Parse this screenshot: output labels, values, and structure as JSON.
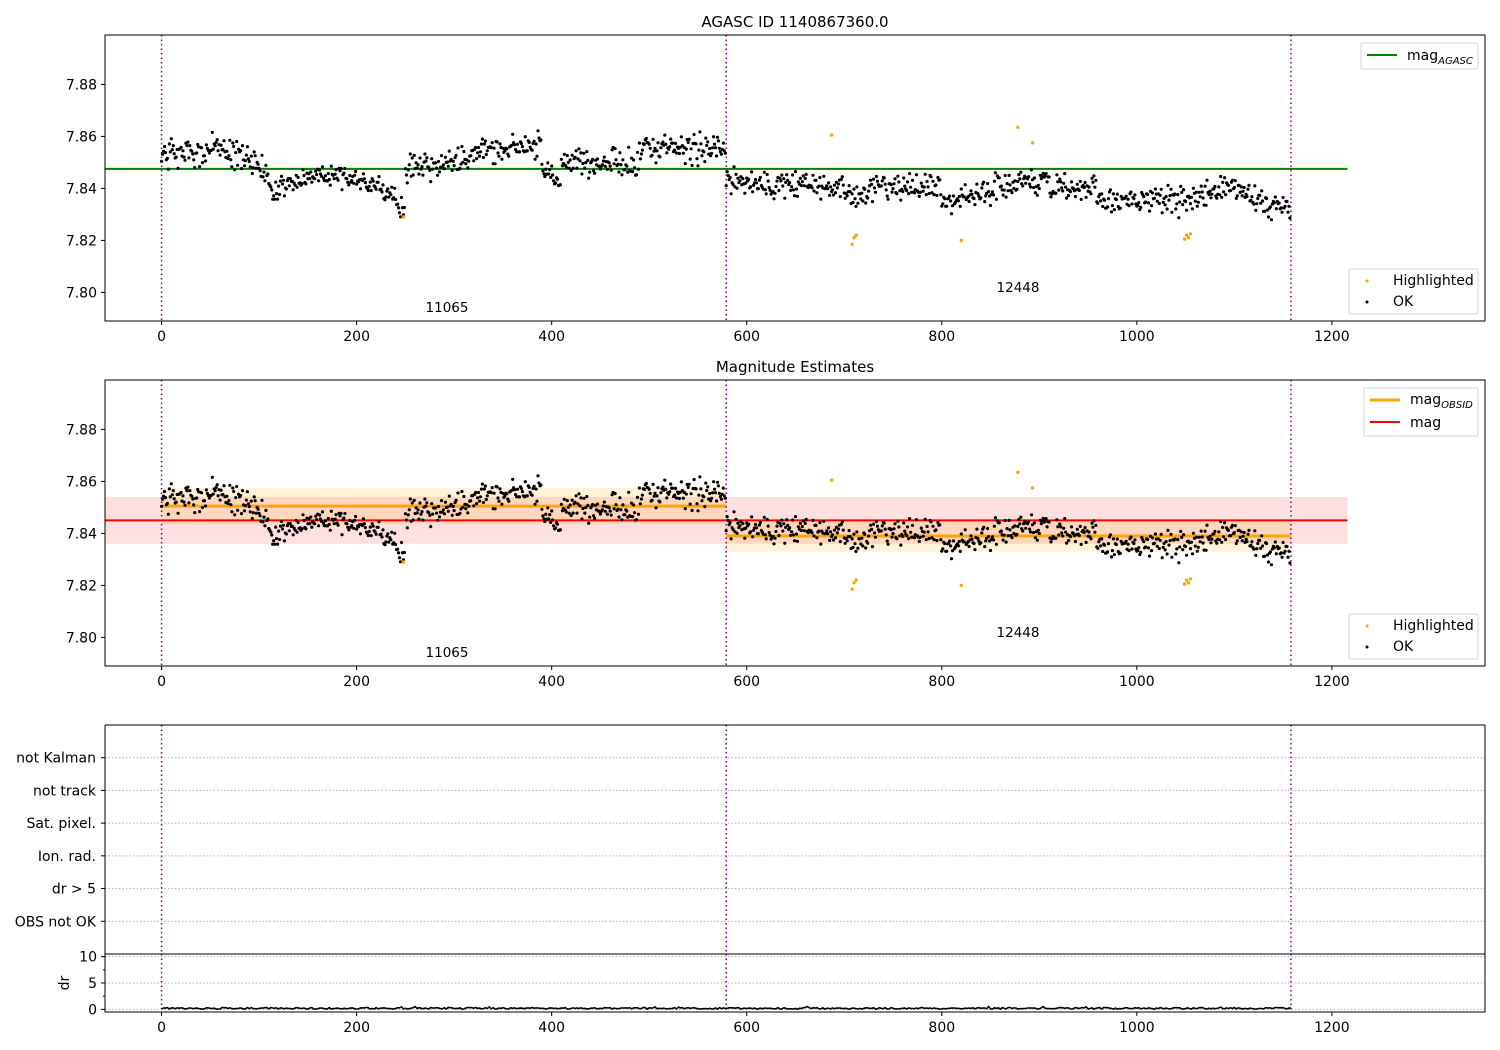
{
  "chart_data": [
    {
      "type": "scatter",
      "title": "AGASC ID 1140867360.0",
      "xlabel": "",
      "ylabel": "",
      "xlim": [
        -58,
        1357
      ],
      "ylim": [
        7.789,
        7.899
      ],
      "xticks": [
        0,
        200,
        400,
        600,
        800,
        1000,
        1200
      ],
      "yticks": [
        7.8,
        7.82,
        7.84,
        7.86,
        7.88
      ],
      "grid": false,
      "obsid_boundaries": [
        0,
        579,
        1158
      ],
      "obsid_labels": [
        {
          "text": "11065",
          "x": 289,
          "y": 7.794
        },
        {
          "text": "12448",
          "x": 868,
          "y": 7.802
        }
      ],
      "reference_lines": [
        {
          "name": "mag_AGASC",
          "label_main": "mag",
          "label_sub": "AGASC",
          "x": [
            -58,
            1216
          ],
          "y": 7.8475,
          "color": "#008000"
        }
      ],
      "series": [
        {
          "name": "Highlighted",
          "color": "#ffa500",
          "points": [
            [
              248,
              7.829
            ],
            [
              687,
              7.8605
            ],
            [
              708,
              7.8185
            ],
            [
              710,
              7.821
            ],
            [
              712,
              7.822
            ],
            [
              820,
              7.82
            ],
            [
              878,
              7.8635
            ],
            [
              893,
              7.8575
            ],
            [
              1049,
              7.8205
            ],
            [
              1051,
              7.822
            ],
            [
              1053,
              7.821
            ],
            [
              1055,
              7.8225
            ]
          ]
        },
        {
          "name": "OK",
          "color": "#000000",
          "segments": [
            {
              "x0": 0,
              "x1": 60,
              "y0": 7.852,
              "y1": 7.857,
              "spread": 0.008
            },
            {
              "x0": 60,
              "x1": 110,
              "y0": 7.855,
              "y1": 7.847,
              "spread": 0.007
            },
            {
              "x0": 110,
              "x1": 175,
              "y0": 7.84,
              "y1": 7.845,
              "spread": 0.006
            },
            {
              "x0": 175,
              "x1": 225,
              "y0": 7.845,
              "y1": 7.842,
              "spread": 0.006
            },
            {
              "x0": 225,
              "x1": 250,
              "y0": 7.84,
              "y1": 7.832,
              "spread": 0.005
            },
            {
              "x0": 250,
              "x1": 310,
              "y0": 7.847,
              "y1": 7.851,
              "spread": 0.007
            },
            {
              "x0": 310,
              "x1": 390,
              "y0": 7.852,
              "y1": 7.858,
              "spread": 0.007
            },
            {
              "x0": 390,
              "x1": 410,
              "y0": 7.848,
              "y1": 7.842,
              "spread": 0.005
            },
            {
              "x0": 410,
              "x1": 490,
              "y0": 7.851,
              "y1": 7.849,
              "spread": 0.007
            },
            {
              "x0": 490,
              "x1": 579,
              "y0": 7.855,
              "y1": 7.856,
              "spread": 0.007
            },
            {
              "x0": 579,
              "x1": 640,
              "y0": 7.843,
              "y1": 7.84,
              "spread": 0.007
            },
            {
              "x0": 640,
              "x1": 720,
              "y0": 7.844,
              "y1": 7.837,
              "spread": 0.007
            },
            {
              "x0": 720,
              "x1": 800,
              "y0": 7.84,
              "y1": 7.841,
              "spread": 0.007
            },
            {
              "x0": 800,
              "x1": 880,
              "y0": 7.834,
              "y1": 7.843,
              "spread": 0.007
            },
            {
              "x0": 880,
              "x1": 960,
              "y0": 7.843,
              "y1": 7.84,
              "spread": 0.007
            },
            {
              "x0": 960,
              "x1": 1040,
              "y0": 7.835,
              "y1": 7.836,
              "spread": 0.007
            },
            {
              "x0": 1040,
              "x1": 1100,
              "y0": 7.834,
              "y1": 7.84,
              "spread": 0.007
            },
            {
              "x0": 1100,
              "x1": 1158,
              "y0": 7.838,
              "y1": 7.832,
              "spread": 0.007
            }
          ]
        }
      ],
      "legend_upper": {
        "placement": "upper right",
        "entries": [
          {
            "label_main": "mag",
            "label_sub": "AGASC",
            "color": "#008000"
          }
        ]
      },
      "legend_lower": {
        "placement": "lower right",
        "entries": [
          {
            "label": "Highlighted",
            "color": "#ffa500"
          },
          {
            "label": "OK",
            "color": "#000000"
          }
        ]
      }
    },
    {
      "type": "scatter",
      "title": "Magnitude Estimates",
      "xlabel": "",
      "ylabel": "",
      "xlim": [
        -58,
        1357
      ],
      "ylim": [
        7.789,
        7.899
      ],
      "xticks": [
        0,
        200,
        400,
        600,
        800,
        1000,
        1200
      ],
      "yticks": [
        7.8,
        7.82,
        7.84,
        7.86,
        7.88
      ],
      "grid": false,
      "obsid_boundaries": [
        0,
        579,
        1158
      ],
      "obsid_labels": [
        {
          "text": "11065",
          "x": 289,
          "y": 7.794
        },
        {
          "text": "12448",
          "x": 868,
          "y": 7.802
        }
      ],
      "bands": [
        {
          "name": "mag_band",
          "x": [
            -58,
            1216
          ],
          "y": [
            7.836,
            7.854
          ],
          "color": "#ff0000",
          "opacity": 0.12
        },
        {
          "name": "mag_OBSID_11065_band",
          "x": [
            0,
            579
          ],
          "y": [
            7.8435,
            7.8575
          ],
          "color": "#ffa500",
          "opacity": 0.15
        },
        {
          "name": "mag_OBSID_12448_band",
          "x": [
            579,
            1158
          ],
          "y": [
            7.833,
            7.845
          ],
          "color": "#ffa500",
          "opacity": 0.15
        }
      ],
      "reference_lines": [
        {
          "name": "mag",
          "label_main": "mag",
          "x": [
            -58,
            1216
          ],
          "y": 7.845,
          "color": "#ff0000"
        },
        {
          "name": "mag_OBSID_11065",
          "label_main": "mag",
          "label_sub": "OBSID",
          "x": [
            0,
            579
          ],
          "y": 7.8505,
          "color": "#ffa500"
        },
        {
          "name": "mag_OBSID_12448",
          "label_main": "mag",
          "label_sub": "OBSID",
          "x": [
            579,
            1158
          ],
          "y": 7.839,
          "color": "#ffa500"
        }
      ],
      "series_same_as_panel": 0,
      "legend_upper": {
        "placement": "upper right",
        "entries": [
          {
            "label_main": "mag",
            "label_sub": "OBSID",
            "color": "#ffa500"
          },
          {
            "label_main": "mag",
            "color": "#ff0000"
          }
        ]
      },
      "legend_lower": {
        "placement": "lower right",
        "entries": [
          {
            "label": "Highlighted",
            "color": "#ffa500"
          },
          {
            "label": "OK",
            "color": "#000000"
          }
        ]
      }
    },
    {
      "type": "scatter",
      "title": "",
      "xlabel": "",
      "ylabel": "",
      "xlim": [
        -58,
        1357
      ],
      "flag_rows": [
        "OBS not OK",
        "dr > 5",
        "Ion. rad.",
        "Sat. pixel.",
        "not track",
        "not Kalman"
      ],
      "grid": "dotted horizontal",
      "obsid_boundaries": [
        0,
        579,
        1158
      ],
      "flagged_points": []
    },
    {
      "type": "line",
      "title": "",
      "xlabel": "",
      "ylabel": "dr",
      "xlim": [
        -58,
        1357
      ],
      "ylim": [
        -0.5,
        10.5
      ],
      "xticks": [
        0,
        200,
        400,
        600,
        800,
        1000,
        1200
      ],
      "yticks": [
        0,
        5,
        10
      ],
      "grid": "dotted horizontal",
      "obsid_boundaries": [
        0,
        579,
        1158
      ],
      "series": [
        {
          "name": "dr",
          "color": "#000000",
          "x": [
            0,
            1158
          ],
          "y": [
            0.2,
            0.2
          ],
          "noise": 0.15
        }
      ]
    }
  ]
}
